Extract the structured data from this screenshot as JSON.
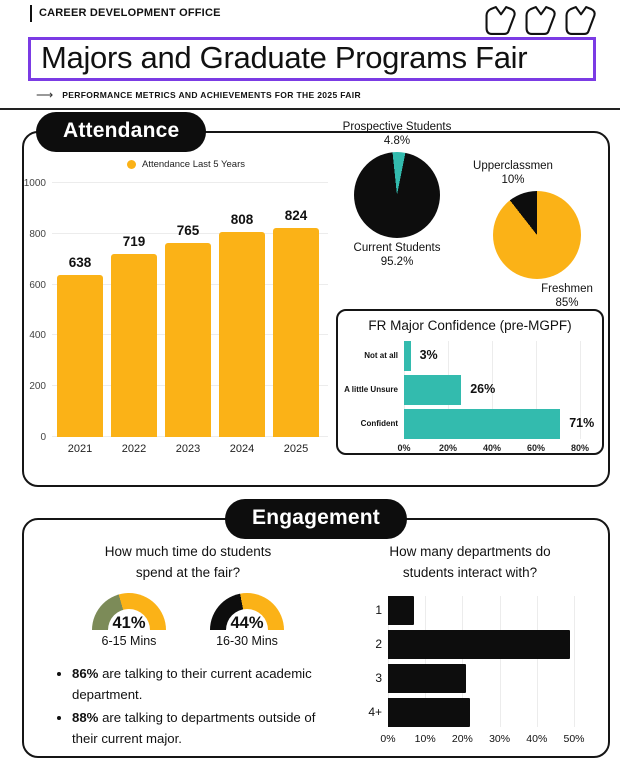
{
  "header": {
    "office": "CAREER DEVELOPMENT OFFICE",
    "title": "Majors and Graduate Programs Fair",
    "subtitle": "PERFORMANCE METRICS AND ACHIEVEMENTS FOR THE 2025 FAIR",
    "arrow": "⟶",
    "logo_icon": "triple-arrow-logo"
  },
  "colors": {
    "yellow": "#FBB217",
    "teal": "#33BBAE",
    "olive": "#7C8B58",
    "black": "#0D0D0D",
    "purple": "#7B3BE4",
    "grid": "#ECECEC"
  },
  "sections": {
    "attendance_label": "Attendance",
    "engagement_label": "Engagement"
  },
  "chart_data": [
    {
      "id": "attendance",
      "type": "bar",
      "legend": "Attendance Last 5 Years",
      "categories": [
        "2021",
        "2022",
        "2023",
        "2024",
        "2025"
      ],
      "values": [
        638,
        719,
        765,
        808,
        824
      ],
      "ylim": [
        0,
        1000
      ],
      "yticks": [
        0,
        200,
        400,
        600,
        800,
        1000
      ],
      "bar_color": "#FBB217",
      "grid": true
    },
    {
      "id": "audience_pie",
      "type": "pie",
      "slices": [
        {
          "label": "Prospective Students",
          "pct": 4.8,
          "pct_label": "4.8%",
          "color": "#33BBAE"
        },
        {
          "label": "Current Students",
          "pct": 95.2,
          "pct_label": "95.2%",
          "color": "#0D0D0D"
        }
      ]
    },
    {
      "id": "class_level_pie",
      "type": "pie",
      "slices": [
        {
          "label": "Upperclassmen",
          "pct": 10,
          "pct_label": "10%",
          "color": "#0D0D0D"
        },
        {
          "label": "Freshmen",
          "pct": 85,
          "pct_label": "85%",
          "color": "#FBB217"
        }
      ]
    },
    {
      "id": "fr_confidence",
      "type": "bar",
      "orientation": "horizontal",
      "title": "FR Major Confidence (pre-MGPF)",
      "categories": [
        "Not at all",
        "A little Unsure",
        "Confident"
      ],
      "values": [
        3,
        26,
        71
      ],
      "value_labels": [
        "3%",
        "26%",
        "71%"
      ],
      "xlim": [
        0,
        80
      ],
      "xticks": [
        "0%",
        "20%",
        "40%",
        "60%",
        "80%"
      ],
      "bar_color": "#33BBAE",
      "grid": true
    },
    {
      "id": "time_spent_gauges",
      "type": "gauge",
      "title": "How much time do students spend at the fair?",
      "gauges": [
        {
          "value": 41,
          "value_label": "41%",
          "label": "6-15 Mins",
          "fill_color": "#7C8B58",
          "track_color": "#FBB217"
        },
        {
          "value": 44,
          "value_label": "44%",
          "label": "16-30 Mins",
          "fill_color": "#0D0D0D",
          "track_color": "#FBB217"
        }
      ]
    },
    {
      "id": "departments",
      "type": "bar",
      "orientation": "horizontal",
      "title": "How many departments do students interact with?",
      "categories": [
        "1",
        "2",
        "3",
        "4+"
      ],
      "values": [
        7,
        49,
        21,
        22
      ],
      "xlim": [
        0,
        50
      ],
      "xticks": [
        "0%",
        "10%",
        "20%",
        "30%",
        "40%",
        "50%"
      ],
      "bar_color": "#0D0D0D",
      "grid": true
    }
  ],
  "engagement": {
    "time_question_line1": "How much time do students",
    "time_question_line2": "spend at the fair?",
    "dept_question_line1": "How many departments do",
    "dept_question_line2": "students interact with?",
    "bullets": [
      {
        "pct": "86%",
        "text": " are talking to their current academic department."
      },
      {
        "pct": "88%",
        "text": " are talking to departments outside of their current major."
      }
    ]
  }
}
